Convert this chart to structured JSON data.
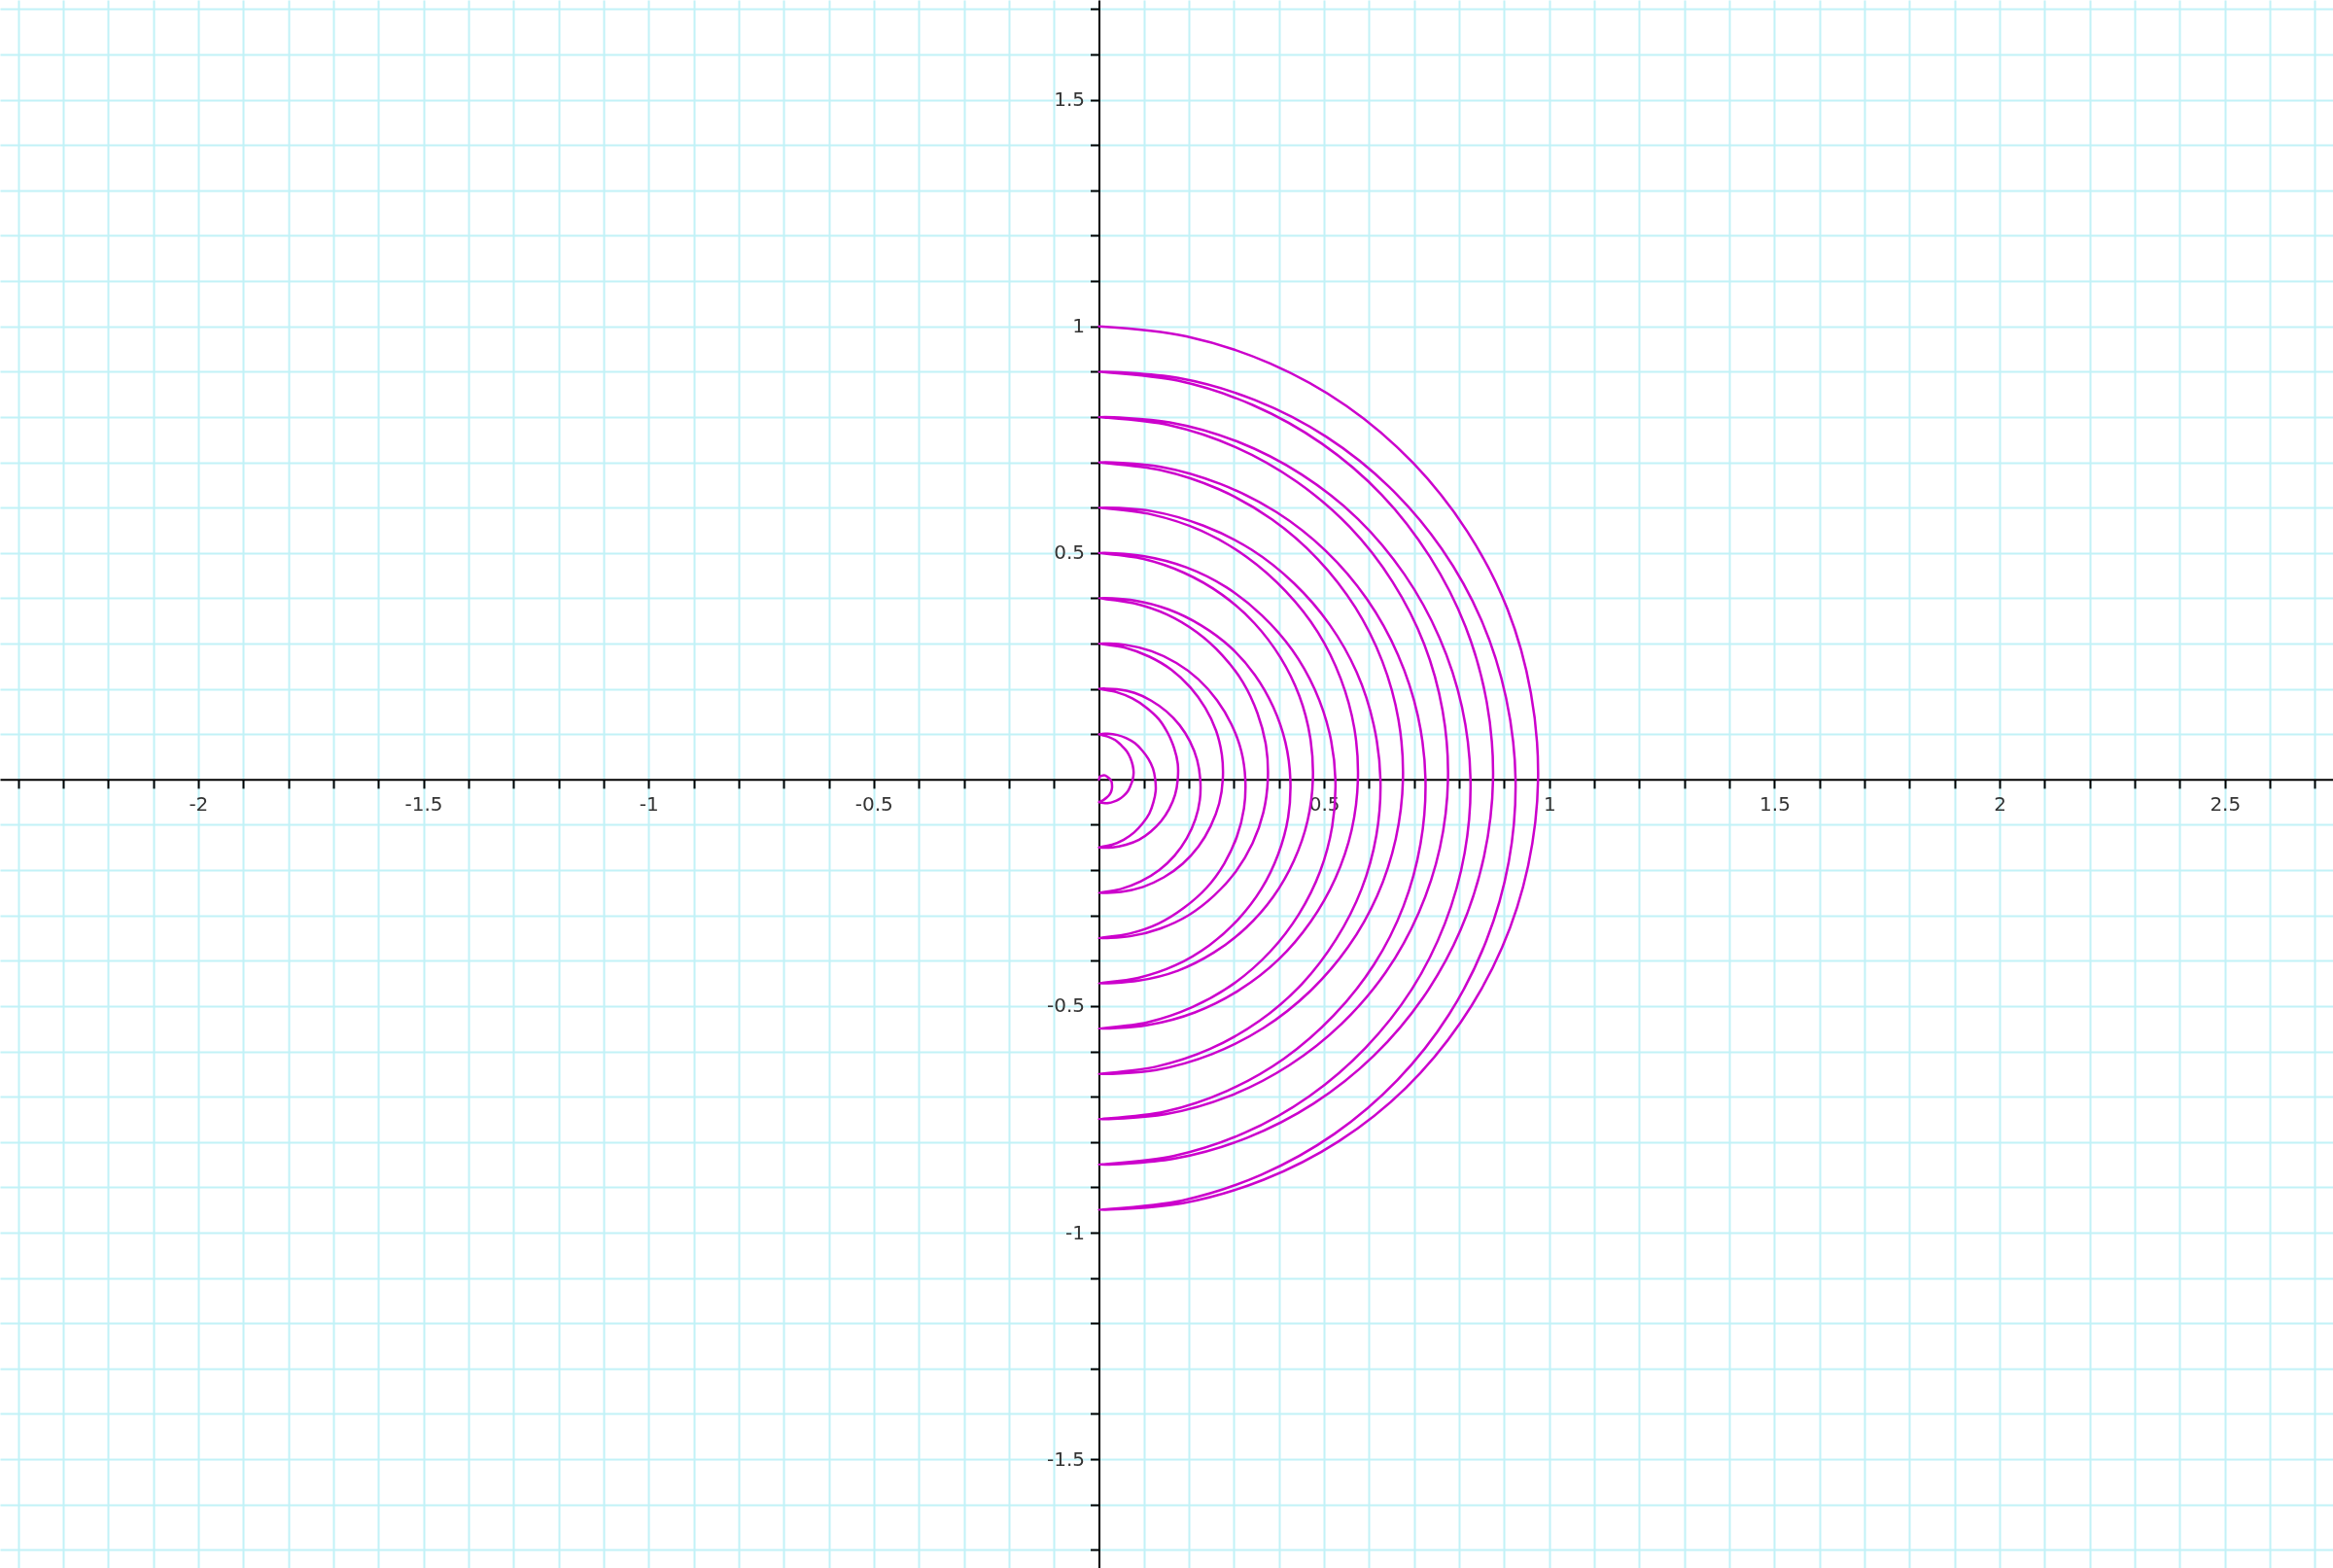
{
  "chart_data": {
    "type": "line",
    "x": [
      0,
      0.001,
      0.002,
      0.005,
      0.009,
      0.013,
      0.017,
      0.021,
      0.025,
      0.028,
      0.029,
      0.029,
      0.027,
      0.023,
      0.017,
      0.009,
      0,
      0.01,
      0.022,
      0.033,
      0.044,
      0.055,
      0.064,
      0.07,
      0.075,
      0.077,
      0.075,
      0.07,
      0.062,
      0.05,
      0.036,
      0.019,
      0,
      0.02,
      0.041,
      0.061,
      0.08,
      0.096,
      0.11,
      0.12,
      0.125,
      0.126,
      0.121,
      0.112,
      0.097,
      0.078,
      0.055,
      0.029,
      0,
      0.03,
      0.06,
      0.089,
      0.115,
      0.138,
      0.156,
      0.169,
      0.175,
      0.175,
      0.167,
      0.153,
      0.133,
      0.106,
      0.074,
      0.038,
      0,
      0.04,
      0.079,
      0.116,
      0.15,
      0.179,
      0.202,
      0.218,
      0.225,
      0.224,
      0.214,
      0.195,
      0.168,
      0.134,
      0.093,
      0.048,
      0,
      0.049,
      0.098,
      0.144,
      0.186,
      0.221,
      0.248,
      0.267,
      0.275,
      0.273,
      0.26,
      0.236,
      0.203,
      0.161,
      0.112,
      0.058,
      0,
      0.059,
      0.117,
      0.172,
      0.221,
      0.262,
      0.294,
      0.316,
      0.325,
      0.322,
      0.306,
      0.278,
      0.239,
      0.189,
      0.132,
      0.068,
      0,
      0.069,
      0.136,
      0.2,
      0.256,
      0.304,
      0.341,
      0.365,
      0.375,
      0.371,
      0.352,
      0.32,
      0.274,
      0.217,
      0.151,
      0.077,
      0,
      0.079,
      0.155,
      0.227,
      0.292,
      0.346,
      0.387,
      0.414,
      0.425,
      0.42,
      0.398,
      0.361,
      0.309,
      0.245,
      0.17,
      0.087,
      0,
      0.088,
      0.175,
      0.255,
      0.327,
      0.387,
      0.433,
      0.463,
      0.475,
      0.469,
      0.445,
      0.403,
      0.345,
      0.273,
      0.189,
      0.097,
      0,
      0.098,
      0.194,
      0.283,
      0.362,
      0.429,
      0.479,
      0.512,
      0.525,
      0.518,
      0.491,
      0.444,
      0.38,
      0.3,
      0.208,
      0.107,
      0,
      0.108,
      0.213,
      0.311,
      0.398,
      0.47,
      0.525,
      0.561,
      0.575,
      0.567,
      0.537,
      0.486,
      0.415,
      0.328,
      0.227,
      0.116,
      0,
      0.118,
      0.232,
      0.339,
      0.433,
      0.512,
      0.572,
      0.61,
      0.625,
      0.616,
      0.583,
      0.527,
      0.451,
      0.356,
      0.246,
      0.126,
      0,
      0.127,
      0.251,
      0.366,
      0.468,
      0.553,
      0.618,
      0.659,
      0.675,
      0.665,
      0.629,
      0.569,
      0.486,
      0.384,
      0.265,
      0.136,
      0,
      0.137,
      0.27,
      0.394,
      0.504,
      0.595,
      0.664,
      0.708,
      0.725,
      0.714,
      0.676,
      0.611,
      0.521,
      0.411,
      0.285,
      0.146,
      0,
      0.147,
      0.289,
      0.422,
      0.539,
      0.637,
      0.71,
      0.757,
      0.775,
      0.763,
      0.722,
      0.652,
      0.557,
      0.439,
      0.304,
      0.155,
      0,
      0.157,
      0.309,
      0.45,
      0.575,
      0.678,
      0.756,
      0.806,
      0.825,
      0.812,
      0.768,
      0.694,
      0.592,
      0.467,
      0.323,
      0.165,
      0,
      0.166,
      0.328,
      0.477,
      0.61,
      0.72,
      0.803,
      0.855,
      0.875,
      0.861,
      0.814,
      0.735,
      0.628,
      0.495,
      0.342,
      0.175,
      0,
      0.176,
      0.347,
      0.505,
      0.645,
      0.761,
      0.849,
      0.904,
      0.925,
      0.91,
      0.86,
      0.777,
      0.663,
      0.523,
      0.361,
      0.185,
      0,
      0.186,
      0.366,
      0.533,
      0.681,
      0.803,
      0.895,
      0.953,
      0.975,
      0.959,
      0.907,
      0.818,
      0.698,
      0.55,
      0.38,
      0.194,
      0
    ],
    "series": [
      {
        "color": "#cc00cc",
        "values": [
          0,
          0.003,
          0.006,
          0.008,
          0.009,
          0.009,
          0.007,
          0.004,
          0,
          -0.005,
          -0.012,
          -0.019,
          -0.027,
          -0.034,
          -0.04,
          -0.046,
          -0.05,
          -0.052,
          -0.052,
          -0.049,
          -0.044,
          -0.036,
          -0.026,
          -0.014,
          0,
          0.015,
          0.031,
          0.047,
          0.062,
          0.075,
          0.087,
          0.095,
          0.1,
          0.101,
          0.098,
          0.091,
          0.08,
          0.064,
          0.045,
          0.024,
          0,
          -0.025,
          -0.05,
          -0.075,
          -0.097,
          -0.117,
          -0.133,
          -0.144,
          -0.15,
          -0.15,
          -0.144,
          -0.133,
          -0.115,
          -0.092,
          -0.065,
          -0.034,
          0,
          0.035,
          0.069,
          0.102,
          0.133,
          0.158,
          0.179,
          0.193,
          0.2,
          0.199,
          0.191,
          0.174,
          0.15,
          0.12,
          0.084,
          0.043,
          0,
          -0.045,
          -0.088,
          -0.13,
          -0.168,
          -0.2,
          -0.225,
          -0.242,
          -0.25,
          -0.248,
          -0.237,
          -0.216,
          -0.186,
          -0.148,
          -0.103,
          -0.053,
          0,
          0.054,
          0.108,
          0.158,
          0.203,
          0.242,
          0.271,
          0.291,
          0.3,
          0.297,
          0.283,
          0.257,
          0.221,
          0.175,
          0.122,
          0.063,
          0,
          -0.064,
          -0.127,
          -0.186,
          -0.239,
          -0.283,
          -0.318,
          -0.34,
          -0.35,
          -0.346,
          -0.329,
          -0.299,
          -0.256,
          -0.203,
          -0.141,
          -0.073,
          0,
          0.074,
          0.146,
          0.214,
          0.274,
          0.325,
          0.364,
          0.389,
          0.4,
          0.395,
          0.375,
          0.34,
          0.292,
          0.231,
          0.16,
          0.082,
          0,
          -0.084,
          -0.165,
          -0.241,
          -0.309,
          -0.366,
          -0.41,
          -0.438,
          -0.45,
          -0.444,
          -0.422,
          -0.382,
          -0.327,
          -0.259,
          -0.179,
          -0.092,
          0,
          0.093,
          0.184,
          0.269,
          0.345,
          0.408,
          0.456,
          0.487,
          0.5,
          0.493,
          0.468,
          0.424,
          0.362,
          0.286,
          0.199,
          0.102,
          0,
          -0.103,
          -0.203,
          -0.297,
          -0.38,
          -0.45,
          -0.502,
          -0.536,
          -0.55,
          -0.542,
          -0.514,
          -0.465,
          -0.398,
          -0.314,
          -0.218,
          -0.112,
          0,
          0.113,
          0.222,
          0.325,
          0.415,
          0.491,
          0.549,
          0.585,
          0.6,
          0.592,
          0.56,
          0.507,
          0.433,
          0.342,
          0.237,
          0.121,
          0,
          -0.123,
          -0.242,
          -0.352,
          -0.451,
          -0.533,
          -0.595,
          -0.634,
          -0.65,
          -0.641,
          -0.606,
          -0.548,
          -0.468,
          -0.37,
          -0.256,
          -0.131,
          0,
          0.132,
          0.261,
          0.38,
          0.486,
          0.574,
          0.641,
          0.683,
          0.7,
          0.69,
          0.652,
          0.59,
          0.504,
          0.398,
          0.275,
          0.141,
          0,
          -0.142,
          -0.28,
          -0.408,
          -0.521,
          -0.616,
          -0.687,
          -0.733,
          -0.75,
          -0.739,
          -0.699,
          -0.631,
          -0.539,
          -0.425,
          -0.294,
          -0.151,
          0,
          0.152,
          0.299,
          0.436,
          0.557,
          0.657,
          0.733,
          0.782,
          0.8,
          0.788,
          0.745,
          0.673,
          0.575,
          0.453,
          0.313,
          0.16,
          0,
          -0.162,
          -0.318,
          -0.464,
          -0.592,
          -0.699,
          -0.78,
          -0.831,
          -0.85,
          -0.837,
          -0.791,
          -0.715,
          -0.61,
          -0.481,
          -0.332,
          -0.17,
          0,
          0.171,
          0.337,
          0.491,
          0.628,
          0.741,
          0.826,
          0.88,
          0.9,
          0.886,
          0.837,
          0.756,
          0.645,
          0.509,
          0.352,
          0.18,
          0,
          -0.181,
          -0.356,
          -0.519,
          -0.663,
          -0.782,
          -0.872,
          -0.929,
          -0.95,
          -0.935,
          -0.883,
          -0.798,
          -0.681,
          -0.536,
          -0.371,
          -0.19,
          0,
          0.191,
          0.376,
          0.547,
          0.698,
          0.824,
          0.918,
          0.978,
          1
        ]
      }
    ],
    "xlim": [
      -2.44,
      2.74
    ],
    "ylim": [
      -1.74,
      1.72
    ],
    "xticks": [
      {
        "value": -2.4,
        "label": null
      },
      {
        "value": -2.3,
        "label": null
      },
      {
        "value": -2.2,
        "label": null
      },
      {
        "value": -2.1,
        "label": null
      },
      -2,
      {
        "value": -1.9,
        "label": null
      },
      {
        "value": -1.8,
        "label": null
      },
      {
        "value": -1.7,
        "label": null
      },
      {
        "value": -1.6,
        "label": null
      },
      -1.5,
      {
        "value": -1.4,
        "label": null
      },
      {
        "value": -1.3,
        "label": null
      },
      {
        "value": -1.2,
        "label": null
      },
      {
        "value": -1.1,
        "label": null
      },
      -1,
      {
        "value": -0.9,
        "label": null
      },
      {
        "value": -0.8,
        "label": null
      },
      {
        "value": -0.7,
        "label": null
      },
      {
        "value": -0.6,
        "label": null
      },
      -0.5,
      {
        "value": -0.4,
        "label": null
      },
      {
        "value": -0.3,
        "label": null
      },
      {
        "value": -0.2,
        "label": null
      },
      {
        "value": -0.1,
        "label": null
      },
      {
        "value": 0.1,
        "label": null
      },
      {
        "value": 0.2,
        "label": null
      },
      {
        "value": 0.3,
        "label": null
      },
      {
        "value": 0.4,
        "label": null
      },
      0.5,
      {
        "value": 0.6,
        "label": null
      },
      {
        "value": 0.7,
        "label": null
      },
      {
        "value": 0.8,
        "label": null
      },
      {
        "value": 0.9,
        "label": null
      },
      1,
      {
        "value": 1.1,
        "label": null
      },
      {
        "value": 1.2,
        "label": null
      },
      {
        "value": 1.3,
        "label": null
      },
      {
        "value": 1.4,
        "label": null
      },
      1.5,
      {
        "value": 1.6,
        "label": null
      },
      {
        "value": 1.7,
        "label": null
      },
      {
        "value": 1.8,
        "label": null
      },
      {
        "value": 1.9,
        "label": null
      },
      2,
      {
        "value": 2.1,
        "label": null
      },
      {
        "value": 2.2,
        "label": null
      },
      {
        "value": 2.3,
        "label": null
      },
      {
        "value": 2.4,
        "label": null
      },
      2.5,
      {
        "value": 2.6,
        "label": null
      },
      {
        "value": 2.7,
        "label": null
      }
    ],
    "yticks": [
      {
        "value": -1.7,
        "label": null
      },
      {
        "value": -1.6,
        "label": null
      },
      -1.5,
      {
        "value": -1.4,
        "label": null
      },
      {
        "value": -1.3,
        "label": null
      },
      {
        "value": -1.2,
        "label": null
      },
      {
        "value": -1.1,
        "label": null
      },
      -1,
      {
        "value": -0.9,
        "label": null
      },
      {
        "value": -0.8,
        "label": null
      },
      {
        "value": -0.7,
        "label": null
      },
      {
        "value": -0.6,
        "label": null
      },
      -0.5,
      {
        "value": -0.4,
        "label": null
      },
      {
        "value": -0.3,
        "label": null
      },
      {
        "value": -0.2,
        "label": null
      },
      {
        "value": -0.1,
        "label": null
      },
      {
        "value": 0.1,
        "label": null
      },
      {
        "value": 0.2,
        "label": null
      },
      {
        "value": 0.3,
        "label": null
      },
      {
        "value": 0.4,
        "label": null
      },
      0.5,
      {
        "value": 0.6,
        "label": null
      },
      {
        "value": 0.7,
        "label": null
      },
      {
        "value": 0.8,
        "label": null
      },
      {
        "value": 0.9,
        "label": null
      },
      1,
      {
        "value": 1.1,
        "label": null
      },
      {
        "value": 1.2,
        "label": null
      },
      {
        "value": 1.3,
        "label": null
      },
      {
        "value": 1.4,
        "label": null
      },
      1.5,
      {
        "value": 1.6,
        "label": null
      },
      {
        "value": 1.7,
        "label": null
      }
    ],
    "grid": true
  }
}
